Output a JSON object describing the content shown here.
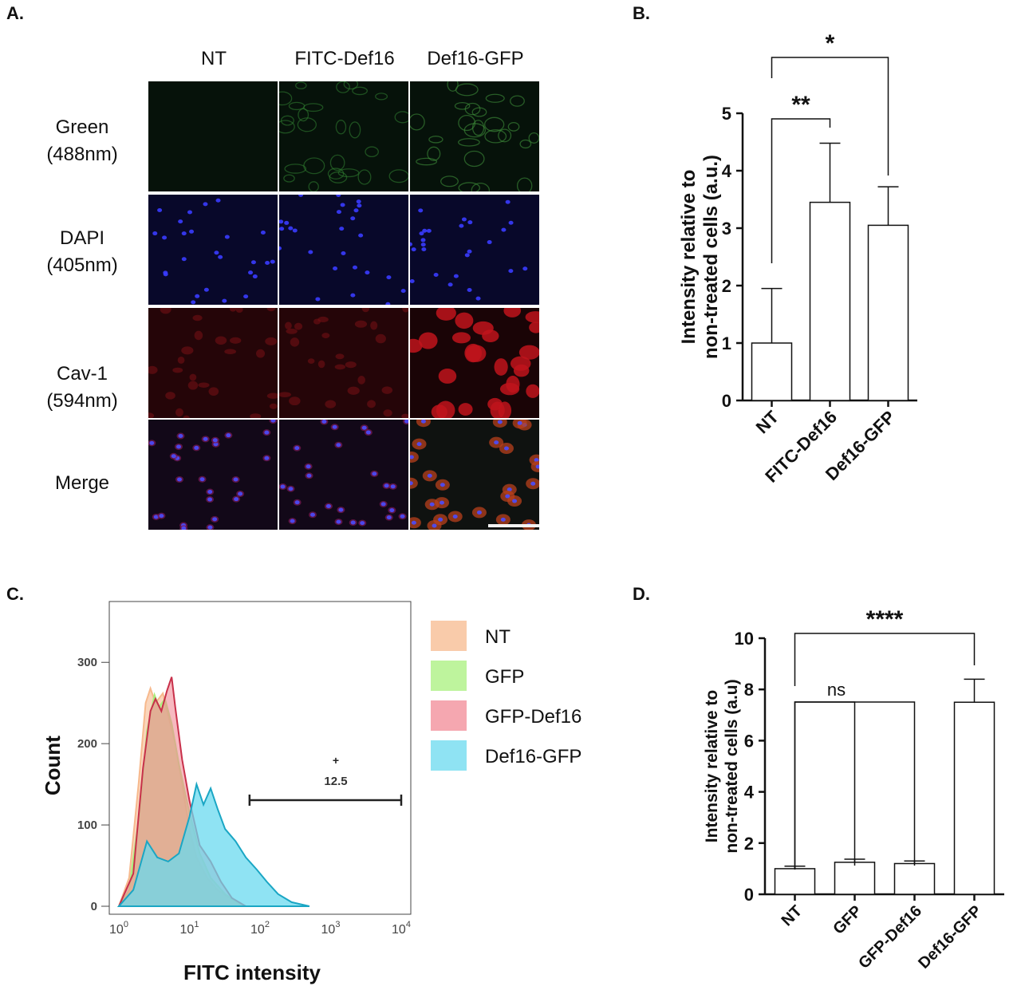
{
  "panels": {
    "a": "A.",
    "b": "B.",
    "c": "C.",
    "d": "D."
  },
  "micrograph": {
    "columns": [
      "NT",
      "FITC-Def16",
      "Def16-GFP"
    ],
    "rows": [
      {
        "line1": "Green",
        "line2": "(488nm)"
      },
      {
        "line1": "DAPI",
        "line2": "(405nm)"
      },
      {
        "line1": "Cav-1",
        "line2": "(594nm)"
      },
      {
        "line1": "Merge",
        "line2": ""
      }
    ]
  },
  "chart_data": [
    {
      "id": "B",
      "type": "bar",
      "categories": [
        "NT",
        "FITC-Def16",
        "Def16-GFP"
      ],
      "values": [
        1.0,
        3.45,
        3.05
      ],
      "errors": [
        0.95,
        1.03,
        0.67
      ],
      "ylabel_line1": "Intensity relative to",
      "ylabel_line2": "non-treated cells (a.u.)",
      "ylim": [
        0,
        5
      ],
      "yticks": [
        0,
        1,
        2,
        3,
        4,
        5
      ],
      "significance": [
        {
          "from": 0,
          "to": 1,
          "label": "**"
        },
        {
          "from": 0,
          "to": 2,
          "label": "*"
        }
      ]
    },
    {
      "id": "C",
      "type": "area",
      "xlabel": "FITC intensity",
      "ylabel": "Count",
      "ylim": [
        0,
        300
      ],
      "yticks": [
        0,
        100,
        200,
        300
      ],
      "xscale": "log",
      "xticks": [
        "10^0",
        "10^1",
        "10^2",
        "10^3",
        "10^4"
      ],
      "gate": {
        "marker": "+",
        "label": "12.5",
        "from": 71,
        "to": 10000
      },
      "series": [
        {
          "name": "NT",
          "color": "#f7b98d",
          "points": [
            [
              1,
              0
            ],
            [
              1.4,
              35
            ],
            [
              1.9,
              150
            ],
            [
              2.4,
              250
            ],
            [
              2.8,
              268
            ],
            [
              3.3,
              250
            ],
            [
              4.2,
              262
            ],
            [
              5,
              235
            ],
            [
              6.3,
              200
            ],
            [
              7.9,
              150
            ],
            [
              10,
              95
            ],
            [
              12.6,
              60
            ],
            [
              17.8,
              35
            ],
            [
              25,
              20
            ],
            [
              40,
              8
            ],
            [
              63,
              0
            ]
          ]
        },
        {
          "name": "GFP",
          "color": "#a8f07c",
          "points": [
            [
              1,
              0
            ],
            [
              1.4,
              20
            ],
            [
              2,
              120
            ],
            [
              2.5,
              215
            ],
            [
              3.2,
              260
            ],
            [
              3.7,
              245
            ],
            [
              4.5,
              255
            ],
            [
              5.6,
              225
            ],
            [
              7.1,
              175
            ],
            [
              10,
              115
            ],
            [
              14,
              65
            ],
            [
              20,
              35
            ],
            [
              32,
              15
            ],
            [
              50,
              3
            ],
            [
              63,
              0
            ]
          ]
        },
        {
          "name": "GFP-Def16",
          "color": "#f28a96",
          "points": [
            [
              1,
              0
            ],
            [
              1.6,
              40
            ],
            [
              2.2,
              170
            ],
            [
              2.8,
              240
            ],
            [
              3.3,
              255
            ],
            [
              4,
              240
            ],
            [
              4.8,
              265
            ],
            [
              5.6,
              282
            ],
            [
              6.3,
              245
            ],
            [
              7.9,
              180
            ],
            [
              10,
              130
            ],
            [
              14,
              75
            ],
            [
              20,
              55
            ],
            [
              28,
              30
            ],
            [
              40,
              10
            ],
            [
              63,
              0
            ]
          ]
        },
        {
          "name": "Def16-GFP",
          "color": "#69d9ef",
          "points": [
            [
              1,
              0
            ],
            [
              1.6,
              20
            ],
            [
              2.5,
              80
            ],
            [
              3.5,
              60
            ],
            [
              5,
              55
            ],
            [
              7.1,
              65
            ],
            [
              10,
              110
            ],
            [
              12.6,
              150
            ],
            [
              15.8,
              125
            ],
            [
              20,
              145
            ],
            [
              25,
              120
            ],
            [
              32,
              95
            ],
            [
              45,
              80
            ],
            [
              63,
              60
            ],
            [
              90,
              45
            ],
            [
              125,
              30
            ],
            [
              180,
              15
            ],
            [
              280,
              5
            ],
            [
              500,
              0
            ]
          ]
        }
      ]
    },
    {
      "id": "D",
      "type": "bar",
      "categories": [
        "NT",
        "GFP",
        "GFP-Def16",
        "Def16-GFP"
      ],
      "values": [
        1.0,
        1.25,
        1.2,
        7.5
      ],
      "errors": [
        0.1,
        0.12,
        0.1,
        0.9
      ],
      "ylabel_line1": "Intensity relative to",
      "ylabel_line2": "non-treated cells (a.u)",
      "ylim": [
        0,
        10
      ],
      "yticks": [
        0,
        2,
        4,
        6,
        8,
        10
      ],
      "significance": [
        {
          "from": 0,
          "to": 3,
          "label": "****"
        },
        {
          "from": 0,
          "to": 1,
          "label": ""
        },
        {
          "from": 0,
          "to": 2,
          "label": "ns"
        }
      ]
    }
  ]
}
